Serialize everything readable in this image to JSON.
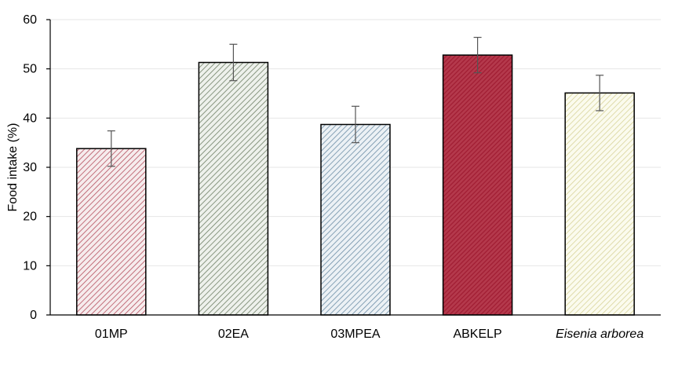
{
  "chart_data": {
    "type": "bar",
    "ylabel": "Food intake (%)",
    "xlabel": "",
    "ylim": [
      0,
      60
    ],
    "yticks": [
      0,
      10,
      20,
      30,
      40,
      50,
      60
    ],
    "grid": true,
    "categories": [
      "01MP",
      "02EA",
      "03MPEA",
      "ABKELP",
      "Eisenia arborea"
    ],
    "values": [
      33.8,
      51.3,
      38.7,
      52.8,
      45.1
    ],
    "errors": [
      3.6,
      3.7,
      3.7,
      3.6,
      3.6
    ],
    "italic_categories": [
      "Eisenia arborea"
    ],
    "bar_colors": [
      "#b5505f",
      "#6f8066",
      "#6d8ea6",
      "#a01c32",
      "#d8d49a"
    ],
    "bar_fill_colors": [
      "#f6eced",
      "#eef1ec",
      "#ecf1f5",
      "#b4394c",
      "#fbfbee"
    ],
    "hatch_dense": [
      false,
      false,
      false,
      true,
      false
    ]
  }
}
